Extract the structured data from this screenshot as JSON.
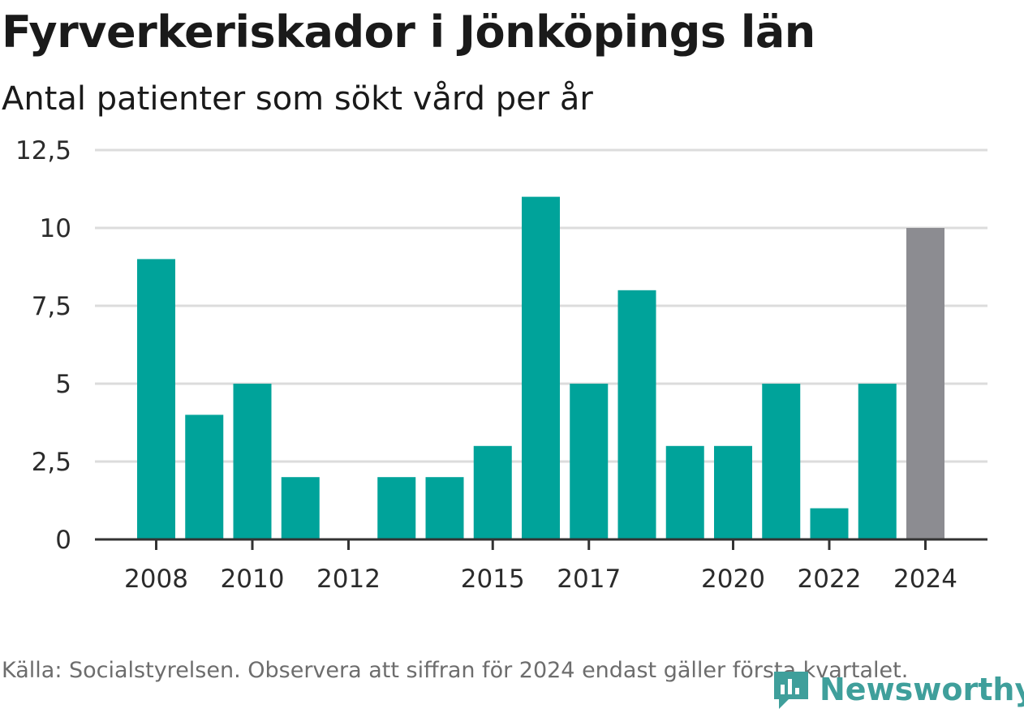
{
  "title": "Fyrverkeriskador i Jönköpings län",
  "subtitle": "Antal patienter som sökt vård per år",
  "source": "Källa: Socialstyrelsen. Observera att siffran för 2024 endast gäller första kvartalet.",
  "brand": {
    "name": "Newsworthy",
    "icon": "newsworthy-logo-icon",
    "color": "#3f9f9b"
  },
  "colors": {
    "bar": "#00a39a",
    "highlight": "#8c8c91",
    "grid": "#dcdcdc",
    "axis": "#333333"
  },
  "chart_data": {
    "type": "bar",
    "title": "Fyrverkeriskador i Jönköpings län",
    "subtitle": "Antal patienter som sökt vård per år",
    "xlabel": "",
    "ylabel": "",
    "categories": [
      "2008",
      "2009",
      "2010",
      "2011",
      "2012",
      "2013",
      "2014",
      "2015",
      "2016",
      "2017",
      "2018",
      "2019",
      "2020",
      "2021",
      "2022",
      "2023",
      "2024"
    ],
    "values": [
      9,
      4,
      5,
      2,
      0,
      2,
      2,
      3,
      11,
      5,
      8,
      3,
      3,
      5,
      1,
      5,
      10
    ],
    "highlighted": [
      "2024"
    ],
    "x_tick_labels": [
      "2008",
      "2010",
      "2012",
      "2015",
      "2017",
      "2020",
      "2022",
      "2024"
    ],
    "y_ticks": [
      0,
      2.5,
      5,
      7.5,
      10,
      12.5
    ],
    "y_tick_labels": [
      "0",
      "2,5",
      "5",
      "7,5",
      "10",
      "12,5"
    ],
    "ylim": [
      0,
      12.5
    ],
    "grid": true,
    "legend": "none"
  }
}
